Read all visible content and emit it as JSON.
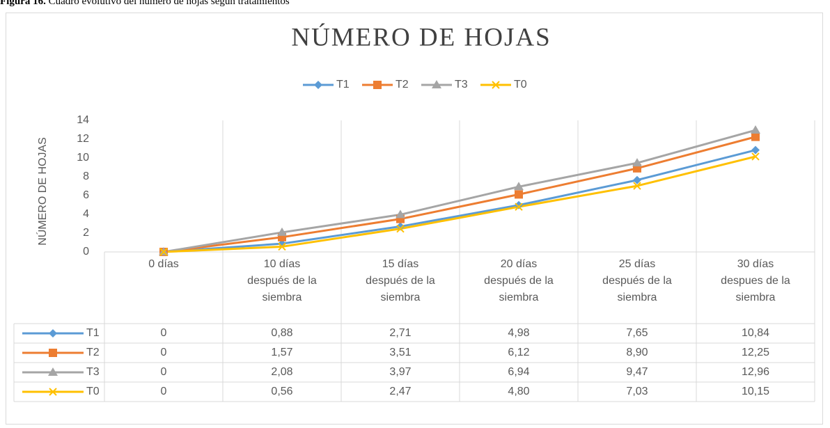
{
  "caption": {
    "label": "Figura 16.",
    "text": "Cuadro evolutivo del número de hojas según tratamientos"
  },
  "chart_data": {
    "type": "line",
    "title": "NÚMERO DE HOJAS",
    "y_label": "NÚMERO DE HOJAS",
    "categories": [
      "0 días",
      "10 días después de la siembra",
      "15 días después de la siembra",
      "20 días después de la siembra",
      "25 días después de la siembra",
      "30 días despues de la siembra"
    ],
    "series": [
      {
        "name": "T1",
        "color": "#5b9bd5",
        "marker": "diamond",
        "values": [
          0,
          0.88,
          2.71,
          4.98,
          7.65,
          10.84
        ],
        "value_labels": [
          "0",
          "0,88",
          "2,71",
          "4,98",
          "7,65",
          "10,84"
        ]
      },
      {
        "name": "T2",
        "color": "#ed7d31",
        "marker": "square",
        "values": [
          0,
          1.57,
          3.51,
          6.12,
          8.9,
          12.25
        ],
        "value_labels": [
          "0",
          "1,57",
          "3,51",
          "6,12",
          "8,90",
          "12,25"
        ]
      },
      {
        "name": "T3",
        "color": "#a5a5a5",
        "marker": "triangle",
        "values": [
          0,
          2.08,
          3.97,
          6.94,
          9.47,
          12.96
        ],
        "value_labels": [
          "0",
          "2,08",
          "3,97",
          "6,94",
          "9,47",
          "12,96"
        ]
      },
      {
        "name": "T0",
        "color": "#ffc000",
        "marker": "x",
        "values": [
          0,
          0.56,
          2.47,
          4.8,
          7.03,
          10.15
        ],
        "value_labels": [
          "0",
          "0,56",
          "2,47",
          "4,80",
          "7,03",
          "10,15"
        ]
      }
    ],
    "ylim": [
      0,
      14
    ],
    "yticks": [
      0,
      2,
      4,
      6,
      8,
      10,
      12,
      14
    ],
    "grid": false,
    "legend": "top",
    "data_table": true
  }
}
